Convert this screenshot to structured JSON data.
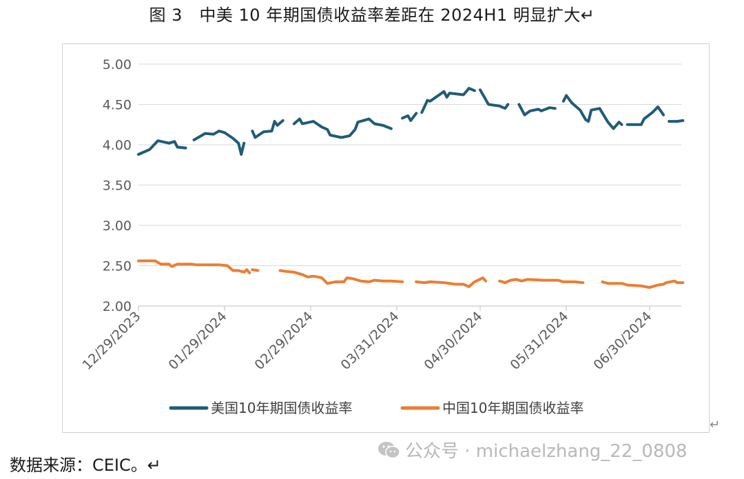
{
  "figure_title": "图 3　中美 10 年期国债收益率差距在 2024H1 明显扩大↵",
  "source_text": "数据来源：CEIC。↵",
  "watermark_text": "公众号 · michaelzhang_22_0808",
  "return_mark": "↵",
  "colors": {
    "us": "#1f5c78",
    "cn": "#ed7d31",
    "grid": "#d9d9d9",
    "axis": "#bfbfbf"
  },
  "icons": {
    "watermark": "wechat-icon"
  },
  "chart_data": {
    "type": "line",
    "title": "",
    "xlabel": "",
    "ylabel": "",
    "ylim": [
      2.0,
      5.0
    ],
    "y_ticks": [
      "5.00",
      "4.50",
      "4.00",
      "3.50",
      "3.00",
      "2.50",
      "2.00"
    ],
    "x_range": [
      "2023-12-29",
      "2024-07-12"
    ],
    "x_ticks": [
      "12/29/2023",
      "01/29/2024",
      "02/29/2024",
      "03/31/2024",
      "04/30/2024",
      "05/31/2024",
      "06/30/2024"
    ],
    "grid": true,
    "legend_position": "bottom",
    "series": [
      {
        "name": "美国10年期国债收益率",
        "segments": [
          [
            [
              "2023-12-29",
              3.88
            ],
            [
              "2024-01-02",
              3.94
            ],
            [
              "2024-01-05",
              4.05
            ],
            [
              "2024-01-09",
              4.02
            ],
            [
              "2024-01-11",
              4.04
            ],
            [
              "2024-01-12",
              3.97
            ],
            [
              "2024-01-15",
              3.96
            ]
          ],
          [
            [
              "2024-01-18",
              4.06
            ],
            [
              "2024-01-22",
              4.14
            ],
            [
              "2024-01-25",
              4.13
            ],
            [
              "2024-01-27",
              4.17
            ],
            [
              "2024-01-29",
              4.15
            ],
            [
              "2024-02-01",
              4.08
            ],
            [
              "2024-02-03",
              4.02
            ],
            [
              "2024-02-04",
              3.88
            ],
            [
              "2024-02-05",
              4.02
            ]
          ],
          [
            [
              "2024-02-08",
              4.17
            ],
            [
              "2024-02-09",
              4.09
            ],
            [
              "2024-02-12",
              4.16
            ],
            [
              "2024-02-15",
              4.17
            ],
            [
              "2024-02-16",
              4.29
            ],
            [
              "2024-02-17",
              4.24
            ],
            [
              "2024-02-19",
              4.3
            ]
          ],
          [
            [
              "2024-02-23",
              4.26
            ],
            [
              "2024-02-25",
              4.32
            ],
            [
              "2024-02-26",
              4.26
            ],
            [
              "2024-03-01",
              4.29
            ],
            [
              "2024-03-04",
              4.22
            ],
            [
              "2024-03-06",
              4.19
            ],
            [
              "2024-03-07",
              4.12
            ],
            [
              "2024-03-11",
              4.09
            ],
            [
              "2024-03-14",
              4.11
            ],
            [
              "2024-03-16",
              4.19
            ],
            [
              "2024-03-17",
              4.28
            ],
            [
              "2024-03-21",
              4.32
            ],
            [
              "2024-03-23",
              4.26
            ],
            [
              "2024-03-26",
              4.24
            ],
            [
              "2024-03-29",
              4.2
            ]
          ],
          [
            [
              "2024-04-02",
              4.33
            ],
            [
              "2024-04-04",
              4.36
            ],
            [
              "2024-04-05",
              4.3
            ],
            [
              "2024-04-07",
              4.39
            ]
          ],
          [
            [
              "2024-04-09",
              4.4
            ],
            [
              "2024-04-11",
              4.55
            ],
            [
              "2024-04-12",
              4.54
            ],
            [
              "2024-04-17",
              4.66
            ],
            [
              "2024-04-18",
              4.59
            ],
            [
              "2024-04-19",
              4.64
            ],
            [
              "2024-04-24",
              4.62
            ],
            [
              "2024-04-26",
              4.7
            ],
            [
              "2024-04-28",
              4.67
            ]
          ],
          [
            [
              "2024-04-30",
              4.68
            ],
            [
              "2024-05-03",
              4.5
            ],
            [
              "2024-05-07",
              4.48
            ],
            [
              "2024-05-09",
              4.45
            ],
            [
              "2024-05-10",
              4.5
            ]
          ],
          [
            [
              "2024-05-14",
              4.5
            ],
            [
              "2024-05-16",
              4.37
            ],
            [
              "2024-05-18",
              4.42
            ],
            [
              "2024-05-21",
              4.44
            ],
            [
              "2024-05-22",
              4.42
            ],
            [
              "2024-05-25",
              4.46
            ],
            [
              "2024-05-27",
              4.45
            ]
          ],
          [
            [
              "2024-05-30",
              4.54
            ],
            [
              "2024-05-31",
              4.61
            ],
            [
              "2024-06-02",
              4.52
            ],
            [
              "2024-06-05",
              4.43
            ],
            [
              "2024-06-07",
              4.31
            ],
            [
              "2024-06-08",
              4.29
            ],
            [
              "2024-06-09",
              4.43
            ],
            [
              "2024-06-12",
              4.45
            ],
            [
              "2024-06-15",
              4.28
            ],
            [
              "2024-06-17",
              4.2
            ],
            [
              "2024-06-19",
              4.28
            ],
            [
              "2024-06-20",
              4.25
            ]
          ],
          [
            [
              "2024-06-22",
              4.25
            ],
            [
              "2024-06-27",
              4.25
            ],
            [
              "2024-06-28",
              4.32
            ],
            [
              "2024-07-01",
              4.4
            ],
            [
              "2024-07-03",
              4.47
            ],
            [
              "2024-07-05",
              4.37
            ]
          ],
          [
            [
              "2024-07-07",
              4.29
            ],
            [
              "2024-07-10",
              4.29
            ],
            [
              "2024-07-12",
              4.3
            ]
          ]
        ]
      },
      {
        "name": "中国10年期国债收益率",
        "segments": [
          [
            [
              "2023-12-29",
              2.56
            ],
            [
              "2024-01-04",
              2.56
            ],
            [
              "2024-01-06",
              2.52
            ],
            [
              "2024-01-09",
              2.52
            ],
            [
              "2024-01-10",
              2.49
            ],
            [
              "2024-01-12",
              2.52
            ],
            [
              "2024-01-17",
              2.52
            ],
            [
              "2024-01-19",
              2.51
            ],
            [
              "2024-01-24",
              2.51
            ],
            [
              "2024-01-27",
              2.51
            ],
            [
              "2024-01-30",
              2.5
            ],
            [
              "2024-02-01",
              2.44
            ],
            [
              "2024-02-03",
              2.44
            ],
            [
              "2024-02-05",
              2.42
            ],
            [
              "2024-02-06",
              2.45
            ],
            [
              "2024-02-07",
              2.41
            ]
          ],
          [
            [
              "2024-02-08",
              2.45
            ],
            [
              "2024-02-10",
              2.44
            ]
          ],
          [
            [
              "2024-02-18",
              2.44
            ],
            [
              "2024-02-20",
              2.43
            ],
            [
              "2024-02-23",
              2.42
            ],
            [
              "2024-02-26",
              2.39
            ],
            [
              "2024-02-28",
              2.36
            ],
            [
              "2024-03-01",
              2.37
            ],
            [
              "2024-03-04",
              2.35
            ],
            [
              "2024-03-06",
              2.28
            ],
            [
              "2024-03-09",
              2.3
            ],
            [
              "2024-03-12",
              2.3
            ],
            [
              "2024-03-13",
              2.35
            ],
            [
              "2024-03-15",
              2.34
            ],
            [
              "2024-03-18",
              2.31
            ],
            [
              "2024-03-21",
              2.3
            ],
            [
              "2024-03-23",
              2.32
            ],
            [
              "2024-03-26",
              2.31
            ],
            [
              "2024-03-29",
              2.31
            ],
            [
              "2024-04-02",
              2.3
            ]
          ],
          [
            [
              "2024-04-07",
              2.3
            ],
            [
              "2024-04-10",
              2.29
            ],
            [
              "2024-04-12",
              2.3
            ],
            [
              "2024-04-17",
              2.29
            ],
            [
              "2024-04-21",
              2.27
            ],
            [
              "2024-04-24",
              2.27
            ],
            [
              "2024-04-26",
              2.24
            ],
            [
              "2024-04-28",
              2.3
            ],
            [
              "2024-05-01",
              2.35
            ],
            [
              "2024-05-02",
              2.31
            ]
          ],
          [
            [
              "2024-05-07",
              2.31
            ],
            [
              "2024-05-09",
              2.29
            ],
            [
              "2024-05-11",
              2.32
            ],
            [
              "2024-05-13",
              2.33
            ],
            [
              "2024-05-15",
              2.31
            ],
            [
              "2024-05-17",
              2.33
            ],
            [
              "2024-05-23",
              2.32
            ],
            [
              "2024-05-28",
              2.32
            ],
            [
              "2024-05-30",
              2.3
            ],
            [
              "2024-06-03",
              2.3
            ],
            [
              "2024-06-06",
              2.29
            ]
          ],
          [
            [
              "2024-06-13",
              2.3
            ],
            [
              "2024-06-15",
              2.28
            ],
            [
              "2024-06-20",
              2.28
            ],
            [
              "2024-06-22",
              2.26
            ],
            [
              "2024-06-27",
              2.25
            ],
            [
              "2024-06-30",
              2.23
            ],
            [
              "2024-07-03",
              2.26
            ],
            [
              "2024-07-05",
              2.27
            ],
            [
              "2024-07-06",
              2.29
            ],
            [
              "2024-07-09",
              2.31
            ],
            [
              "2024-07-10",
              2.29
            ],
            [
              "2024-07-12",
              2.29
            ]
          ]
        ]
      }
    ]
  }
}
